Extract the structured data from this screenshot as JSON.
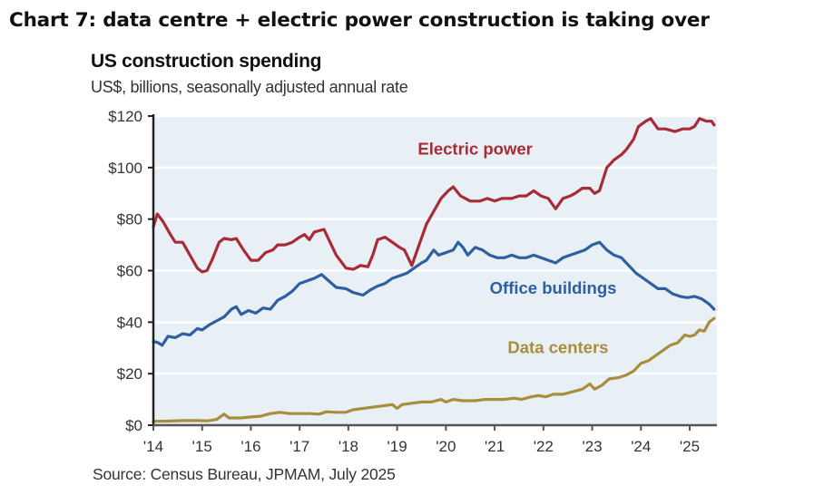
{
  "headline": "Chart 7: data centre + electric power construction is taking over",
  "source": "Source: Census Bureau, JPMAM, July 2025",
  "chart_data": {
    "type": "line",
    "title": "US construction spending",
    "subtitle": "US$, billions, seasonally adjusted annual rate",
    "xlabel": "",
    "ylabel": "",
    "xlim": [
      2014,
      2025.6
    ],
    "ylim": [
      0,
      120
    ],
    "grid": true,
    "legend": "inline labels",
    "x_ticks": [
      2014,
      2015,
      2016,
      2017,
      2018,
      2019,
      2020,
      2021,
      2022,
      2023,
      2024,
      2025
    ],
    "x_tick_labels": [
      "'14",
      "'15",
      "'16",
      "'17",
      "'18",
      "'19",
      "'20",
      "'21",
      "'22",
      "'23",
      "'24",
      "'25"
    ],
    "y_ticks": [
      0,
      20,
      40,
      60,
      80,
      100,
      120
    ],
    "y_tick_labels": [
      "$0",
      "$20",
      "$40",
      "$60",
      "$80",
      "$100",
      "$120"
    ],
    "colors": {
      "plot_background": "#e9f0f5",
      "gridline": "#ffffff",
      "axis": "#222222"
    },
    "series": [
      {
        "name": "Electric power",
        "color": "#a82b38",
        "points": [
          [
            2014.0,
            77
          ],
          [
            2014.08,
            82
          ],
          [
            2014.2,
            79
          ],
          [
            2014.35,
            74
          ],
          [
            2014.45,
            71
          ],
          [
            2014.6,
            71
          ],
          [
            2014.75,
            66
          ],
          [
            2014.9,
            61
          ],
          [
            2015.0,
            59.5
          ],
          [
            2015.1,
            60
          ],
          [
            2015.2,
            64
          ],
          [
            2015.35,
            71
          ],
          [
            2015.45,
            72.5
          ],
          [
            2015.6,
            72
          ],
          [
            2015.7,
            72.5
          ],
          [
            2015.85,
            68
          ],
          [
            2016.0,
            64
          ],
          [
            2016.15,
            64
          ],
          [
            2016.3,
            67
          ],
          [
            2016.45,
            68
          ],
          [
            2016.55,
            70
          ],
          [
            2016.7,
            70
          ],
          [
            2016.85,
            71
          ],
          [
            2017.0,
            73
          ],
          [
            2017.1,
            74
          ],
          [
            2017.2,
            72
          ],
          [
            2017.3,
            75
          ],
          [
            2017.5,
            76
          ],
          [
            2017.6,
            72
          ],
          [
            2017.75,
            66
          ],
          [
            2017.95,
            61
          ],
          [
            2018.1,
            60.5
          ],
          [
            2018.25,
            62
          ],
          [
            2018.4,
            61.5
          ],
          [
            2018.5,
            66
          ],
          [
            2018.6,
            72
          ],
          [
            2018.75,
            73
          ],
          [
            2018.9,
            71
          ],
          [
            2019.05,
            69
          ],
          [
            2019.15,
            68
          ],
          [
            2019.3,
            62
          ],
          [
            2019.45,
            70
          ],
          [
            2019.6,
            78
          ],
          [
            2019.75,
            83
          ],
          [
            2019.9,
            88
          ],
          [
            2020.05,
            91
          ],
          [
            2020.15,
            92.5
          ],
          [
            2020.3,
            89
          ],
          [
            2020.5,
            87
          ],
          [
            2020.7,
            87
          ],
          [
            2020.85,
            88
          ],
          [
            2021.0,
            87
          ],
          [
            2021.15,
            88
          ],
          [
            2021.35,
            88
          ],
          [
            2021.5,
            89
          ],
          [
            2021.65,
            89
          ],
          [
            2021.8,
            91
          ],
          [
            2021.95,
            89
          ],
          [
            2022.1,
            88
          ],
          [
            2022.25,
            84
          ],
          [
            2022.4,
            88
          ],
          [
            2022.55,
            89
          ],
          [
            2022.65,
            90
          ],
          [
            2022.8,
            92
          ],
          [
            2022.95,
            92
          ],
          [
            2023.05,
            90
          ],
          [
            2023.15,
            91
          ],
          [
            2023.3,
            100
          ],
          [
            2023.45,
            103
          ],
          [
            2023.6,
            105
          ],
          [
            2023.7,
            107
          ],
          [
            2023.85,
            111
          ],
          [
            2023.95,
            116
          ],
          [
            2024.1,
            118
          ],
          [
            2024.2,
            119
          ],
          [
            2024.35,
            115
          ],
          [
            2024.5,
            115
          ],
          [
            2024.7,
            114
          ],
          [
            2024.85,
            115
          ],
          [
            2025.0,
            115
          ],
          [
            2025.1,
            116
          ],
          [
            2025.2,
            119
          ],
          [
            2025.35,
            118
          ],
          [
            2025.45,
            118
          ],
          [
            2025.5,
            116.5
          ]
        ]
      },
      {
        "name": "Office buildings",
        "color": "#2e5fa1",
        "points": [
          [
            2014.0,
            32.5
          ],
          [
            2014.1,
            32
          ],
          [
            2014.18,
            31
          ],
          [
            2014.3,
            34.5
          ],
          [
            2014.45,
            34
          ],
          [
            2014.6,
            35.5
          ],
          [
            2014.75,
            35
          ],
          [
            2014.9,
            37.5
          ],
          [
            2015.0,
            37
          ],
          [
            2015.15,
            39
          ],
          [
            2015.3,
            40.5
          ],
          [
            2015.45,
            42
          ],
          [
            2015.6,
            45
          ],
          [
            2015.7,
            46
          ],
          [
            2015.8,
            43
          ],
          [
            2015.95,
            44.5
          ],
          [
            2016.1,
            43.5
          ],
          [
            2016.25,
            45.5
          ],
          [
            2016.4,
            45
          ],
          [
            2016.55,
            48.5
          ],
          [
            2016.7,
            50
          ],
          [
            2016.85,
            52
          ],
          [
            2017.0,
            55
          ],
          [
            2017.15,
            56
          ],
          [
            2017.3,
            57
          ],
          [
            2017.45,
            58.5
          ],
          [
            2017.6,
            56
          ],
          [
            2017.75,
            53.5
          ],
          [
            2017.95,
            53
          ],
          [
            2018.1,
            51.5
          ],
          [
            2018.3,
            50.5
          ],
          [
            2018.45,
            52.5
          ],
          [
            2018.6,
            54
          ],
          [
            2018.75,
            55
          ],
          [
            2018.9,
            57
          ],
          [
            2019.05,
            58
          ],
          [
            2019.2,
            59
          ],
          [
            2019.35,
            61
          ],
          [
            2019.5,
            63
          ],
          [
            2019.6,
            64
          ],
          [
            2019.75,
            68
          ],
          [
            2019.85,
            66
          ],
          [
            2020.0,
            67
          ],
          [
            2020.15,
            68
          ],
          [
            2020.25,
            71
          ],
          [
            2020.35,
            69
          ],
          [
            2020.45,
            66
          ],
          [
            2020.6,
            69
          ],
          [
            2020.75,
            68
          ],
          [
            2020.9,
            66
          ],
          [
            2021.05,
            65
          ],
          [
            2021.2,
            65
          ],
          [
            2021.35,
            66
          ],
          [
            2021.5,
            65
          ],
          [
            2021.65,
            65
          ],
          [
            2021.8,
            66
          ],
          [
            2021.95,
            65
          ],
          [
            2022.1,
            64
          ],
          [
            2022.25,
            63
          ],
          [
            2022.4,
            65
          ],
          [
            2022.55,
            66
          ],
          [
            2022.7,
            67
          ],
          [
            2022.85,
            68
          ],
          [
            2023.0,
            70
          ],
          [
            2023.15,
            71
          ],
          [
            2023.3,
            68
          ],
          [
            2023.45,
            66
          ],
          [
            2023.6,
            65
          ],
          [
            2023.75,
            62
          ],
          [
            2023.9,
            59
          ],
          [
            2024.05,
            57
          ],
          [
            2024.2,
            55
          ],
          [
            2024.35,
            53
          ],
          [
            2024.5,
            53
          ],
          [
            2024.65,
            51
          ],
          [
            2024.8,
            50
          ],
          [
            2024.95,
            49.5
          ],
          [
            2025.1,
            50
          ],
          [
            2025.25,
            49
          ],
          [
            2025.4,
            47
          ],
          [
            2025.5,
            45
          ]
        ]
      },
      {
        "name": "Data centers",
        "color": "#a88d3e",
        "points": [
          [
            2014.0,
            1.5
          ],
          [
            2014.3,
            1.6
          ],
          [
            2014.6,
            1.8
          ],
          [
            2014.9,
            1.8
          ],
          [
            2015.1,
            1.7
          ],
          [
            2015.3,
            2.2
          ],
          [
            2015.45,
            4.3
          ],
          [
            2015.55,
            2.8
          ],
          [
            2015.8,
            2.8
          ],
          [
            2016.0,
            3.2
          ],
          [
            2016.2,
            3.5
          ],
          [
            2016.4,
            4.5
          ],
          [
            2016.6,
            5
          ],
          [
            2016.8,
            4.5
          ],
          [
            2017.0,
            4.5
          ],
          [
            2017.2,
            4.5
          ],
          [
            2017.4,
            4.3
          ],
          [
            2017.55,
            5.2
          ],
          [
            2017.75,
            5
          ],
          [
            2017.95,
            5
          ],
          [
            2018.1,
            6
          ],
          [
            2018.3,
            6.5
          ],
          [
            2018.5,
            7
          ],
          [
            2018.7,
            7.5
          ],
          [
            2018.9,
            8
          ],
          [
            2019.0,
            6.5
          ],
          [
            2019.1,
            8
          ],
          [
            2019.3,
            8.5
          ],
          [
            2019.5,
            9
          ],
          [
            2019.7,
            9
          ],
          [
            2019.9,
            10
          ],
          [
            2020.0,
            9
          ],
          [
            2020.15,
            10
          ],
          [
            2020.35,
            9.5
          ],
          [
            2020.6,
            9.5
          ],
          [
            2020.8,
            10
          ],
          [
            2021.0,
            10
          ],
          [
            2021.2,
            10
          ],
          [
            2021.4,
            10.5
          ],
          [
            2021.55,
            10
          ],
          [
            2021.75,
            11
          ],
          [
            2021.9,
            11.5
          ],
          [
            2022.05,
            11
          ],
          [
            2022.2,
            12
          ],
          [
            2022.4,
            12
          ],
          [
            2022.6,
            13
          ],
          [
            2022.8,
            14
          ],
          [
            2022.95,
            16
          ],
          [
            2023.05,
            14
          ],
          [
            2023.2,
            15.5
          ],
          [
            2023.35,
            18
          ],
          [
            2023.55,
            18.5
          ],
          [
            2023.7,
            19.5
          ],
          [
            2023.85,
            21
          ],
          [
            2024.0,
            24
          ],
          [
            2024.15,
            25
          ],
          [
            2024.3,
            27
          ],
          [
            2024.45,
            29
          ],
          [
            2024.6,
            31
          ],
          [
            2024.75,
            32
          ],
          [
            2024.9,
            35
          ],
          [
            2025.0,
            34.5
          ],
          [
            2025.1,
            35
          ],
          [
            2025.2,
            37
          ],
          [
            2025.3,
            36.5
          ],
          [
            2025.4,
            40
          ],
          [
            2025.5,
            41.5
          ]
        ]
      }
    ],
    "annotations": [
      {
        "text": "Electric power",
        "series": "Electric power",
        "x": 2020.6,
        "y": 105
      },
      {
        "text": "Office buildings",
        "series": "Office buildings",
        "x": 2022.2,
        "y": 51
      },
      {
        "text": "Data centers",
        "series": "Data centers",
        "x": 2022.3,
        "y": 28
      }
    ]
  }
}
